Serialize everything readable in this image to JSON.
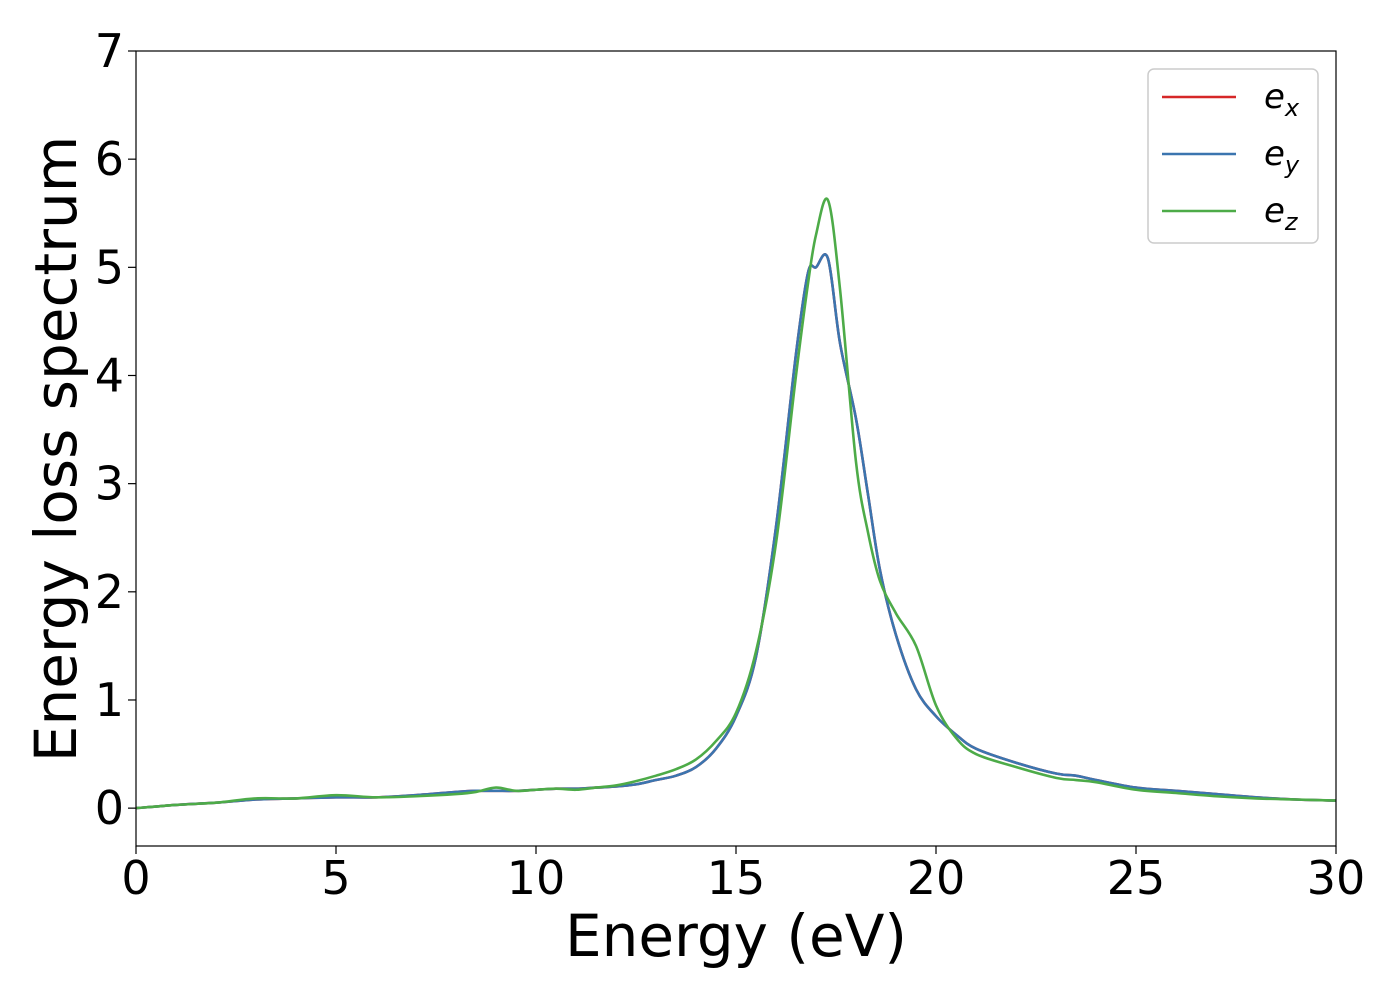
{
  "chart_data": {
    "type": "line",
    "xlabel": "Energy (eV)",
    "ylabel": "Energy loss spectrum",
    "xlim": [
      0,
      30
    ],
    "ylim": [
      -0.35,
      7
    ],
    "xticks": [
      0,
      5,
      10,
      15,
      20,
      25,
      30
    ],
    "xtick_labels": [
      "0",
      "5",
      "10",
      "15",
      "20",
      "25",
      "30"
    ],
    "yticks": [
      0,
      1,
      2,
      3,
      4,
      5,
      6,
      7
    ],
    "ytick_labels": [
      "0",
      "1",
      "2",
      "3",
      "4",
      "5",
      "6",
      "7"
    ],
    "grid": false,
    "legend_position": "top-right",
    "x": [
      0,
      1,
      2,
      3,
      4,
      5,
      6,
      7,
      8,
      8.5,
      9,
      9.5,
      10,
      10.5,
      11,
      11.5,
      12,
      12.5,
      13,
      13.5,
      14,
      14.5,
      15,
      15.5,
      16,
      16.5,
      16.8,
      17,
      17.3,
      17.6,
      18,
      18.3,
      18.6,
      19,
      19.5,
      20,
      20.5,
      21,
      22,
      23,
      23.5,
      24,
      25,
      26,
      27,
      28,
      29,
      30
    ],
    "series": [
      {
        "name_base": "e",
        "name_sub": "x",
        "color": "#d62728",
        "values": [
          0,
          0.03,
          0.05,
          0.08,
          0.09,
          0.1,
          0.1,
          0.12,
          0.15,
          0.16,
          0.16,
          0.16,
          0.17,
          0.18,
          0.18,
          0.19,
          0.2,
          0.22,
          0.26,
          0.3,
          0.38,
          0.55,
          0.85,
          1.4,
          2.6,
          4.2,
          4.95,
          5.0,
          5.08,
          4.3,
          3.6,
          2.9,
          2.2,
          1.6,
          1.1,
          0.85,
          0.68,
          0.55,
          0.42,
          0.32,
          0.3,
          0.26,
          0.19,
          0.16,
          0.13,
          0.1,
          0.08,
          0.07
        ]
      },
      {
        "name_base": "e",
        "name_sub": "y",
        "color": "#3b75af",
        "values": [
          0,
          0.03,
          0.05,
          0.08,
          0.09,
          0.1,
          0.1,
          0.12,
          0.15,
          0.16,
          0.16,
          0.16,
          0.17,
          0.18,
          0.18,
          0.19,
          0.2,
          0.22,
          0.26,
          0.3,
          0.38,
          0.55,
          0.85,
          1.4,
          2.6,
          4.2,
          4.95,
          5.0,
          5.08,
          4.3,
          3.6,
          2.9,
          2.2,
          1.6,
          1.1,
          0.85,
          0.68,
          0.55,
          0.42,
          0.32,
          0.3,
          0.26,
          0.19,
          0.16,
          0.13,
          0.1,
          0.08,
          0.07
        ]
      },
      {
        "name_base": "e",
        "name_sub": "z",
        "color": "#4dab48",
        "values": [
          0,
          0.03,
          0.05,
          0.09,
          0.09,
          0.12,
          0.1,
          0.11,
          0.13,
          0.15,
          0.19,
          0.16,
          0.17,
          0.18,
          0.17,
          0.19,
          0.21,
          0.25,
          0.3,
          0.36,
          0.45,
          0.62,
          0.88,
          1.45,
          2.45,
          4.0,
          4.85,
          5.3,
          5.62,
          4.8,
          3.2,
          2.55,
          2.1,
          1.8,
          1.5,
          0.95,
          0.65,
          0.5,
          0.38,
          0.28,
          0.26,
          0.24,
          0.17,
          0.14,
          0.11,
          0.09,
          0.08,
          0.07
        ]
      }
    ]
  }
}
